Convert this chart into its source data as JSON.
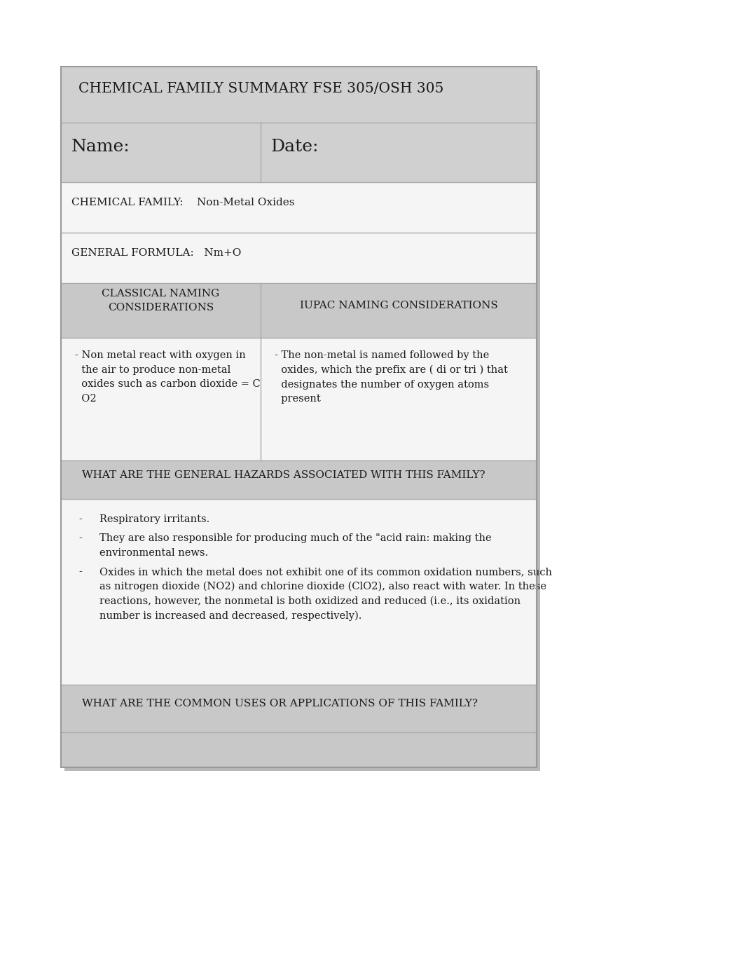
{
  "page_bg": "#ffffff",
  "card_outer_bg": "#c8c8c8",
  "title_row_bg": "#d0d0d0",
  "name_date_bg": "#d0d0d0",
  "white_row_bg": "#f5f5f5",
  "header_row_bg": "#c8c8c8",
  "separator_color": "#aaaaaa",
  "font_color": "#1a1a1a",
  "title_text": "CHEMICAL FAMILY SUMMARY FSE 305/OSH 305",
  "name_label": "Name:",
  "date_label": "Date:",
  "chem_family_line": "CHEMICAL FAMILY:    Non-Metal Oxides",
  "gen_formula_line": "GENERAL FORMULA:   Nm+O",
  "classical_header": "CLASSICAL NAMING\nCONSIDERATIONS",
  "iupac_header": "IUPAC NAMING CONSIDERATIONS",
  "classical_body_lines": [
    "- Non metal react with oxygen in",
    "  the air to produce non-metal",
    "  oxides such as carbon dioxide = C",
    "  O2"
  ],
  "iupac_body_lines": [
    "- The non-metal is named followed by the",
    "  oxides, which the prefix are ( di or tri ) that",
    "  designates the number of oxygen atoms",
    "  present"
  ],
  "hazards_header": "WHAT ARE THE GENERAL HAZARDS ASSOCIATED WITH THIS FAMILY?",
  "hazards_items": [
    [
      "Respiratory irritants."
    ],
    [
      "They are also responsible for producing much of the \"acid rain: making the",
      "environmental news."
    ],
    [
      "Oxides in which the metal does not exhibit one of its common oxidation numbers, such",
      "as nitrogen dioxide (NO2) and chlorine dioxide (ClO2), also react with water. In these",
      "reactions, however, the nonmetal is both oxidized and reduced (i.e., its oxidation",
      "number is increased and decreased, respectively)."
    ]
  ],
  "uses_header": "WHAT ARE THE COMMON USES OR APPLICATIONS OF THIS FAMILY?",
  "col_split": 0.42
}
